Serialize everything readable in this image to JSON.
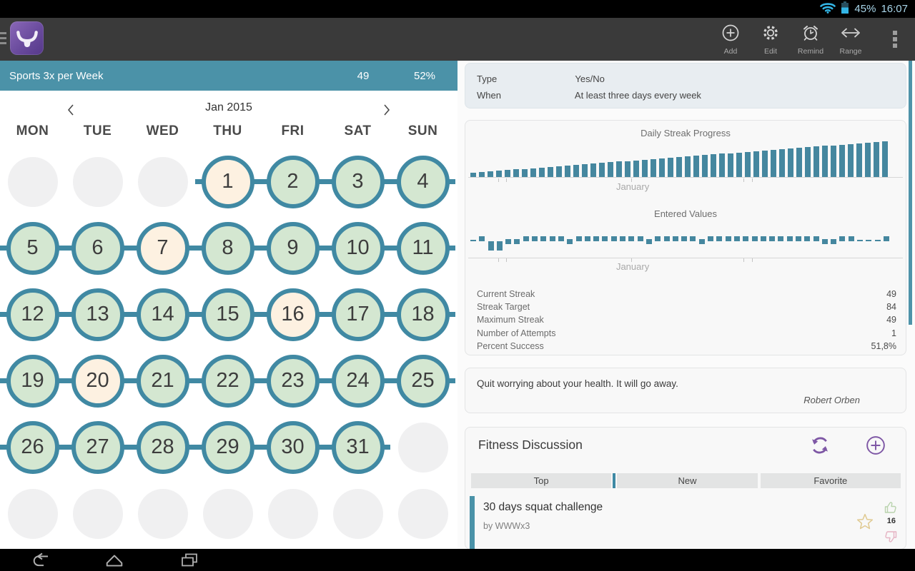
{
  "status_bar": {
    "battery_percent": "45%",
    "time": "16:07",
    "icons": [
      "wifi-icon",
      "battery-icon"
    ],
    "accent_color": "#33b5e5"
  },
  "toolbar": {
    "app_icon": "bull-logo",
    "menu_icon": "hamburger-icon",
    "actions": [
      {
        "label": "Add",
        "icon": "plus-circle-icon"
      },
      {
        "label": "Edit",
        "icon": "gear-icon"
      },
      {
        "label": "Remind",
        "icon": "alarm-clock-icon"
      },
      {
        "label": "Range",
        "icon": "left-right-arrow-icon"
      }
    ],
    "overflow_icon": "overflow-menu-icon"
  },
  "habit": {
    "title": "Sports 3x per Week",
    "streak": "49",
    "percent": "52%",
    "header_color": "#4b92a8"
  },
  "calendar": {
    "month_label": "Jan 2015",
    "day_names": [
      "MON",
      "TUE",
      "WED",
      "THU",
      "FRI",
      "SAT",
      "SUN"
    ],
    "legend": {
      "green": "completed day",
      "cream": "skipped/free day",
      "empty": "outside month"
    },
    "weeks": [
      [
        {
          "s": "empty"
        },
        {
          "s": "empty"
        },
        {
          "s": "empty"
        },
        {
          "n": "1",
          "s": "cream",
          "l": 1,
          "r": 1
        },
        {
          "n": "2",
          "s": "green",
          "l": 1,
          "r": 1
        },
        {
          "n": "3",
          "s": "green",
          "l": 1,
          "r": 1
        },
        {
          "n": "4",
          "s": "green",
          "l": 1,
          "r": 1
        }
      ],
      [
        {
          "n": "5",
          "s": "green",
          "l": 1,
          "r": 1
        },
        {
          "n": "6",
          "s": "green",
          "l": 1,
          "r": 1
        },
        {
          "n": "7",
          "s": "cream",
          "l": 1,
          "r": 1
        },
        {
          "n": "8",
          "s": "green",
          "l": 1,
          "r": 1
        },
        {
          "n": "9",
          "s": "green",
          "l": 1,
          "r": 1
        },
        {
          "n": "10",
          "s": "green",
          "l": 1,
          "r": 1
        },
        {
          "n": "11",
          "s": "green",
          "l": 1,
          "r": 1
        }
      ],
      [
        {
          "n": "12",
          "s": "green",
          "l": 1,
          "r": 1
        },
        {
          "n": "13",
          "s": "green",
          "l": 1,
          "r": 1
        },
        {
          "n": "14",
          "s": "green",
          "l": 1,
          "r": 1
        },
        {
          "n": "15",
          "s": "green",
          "l": 1,
          "r": 1
        },
        {
          "n": "16",
          "s": "cream",
          "l": 1,
          "r": 1
        },
        {
          "n": "17",
          "s": "green",
          "l": 1,
          "r": 1
        },
        {
          "n": "18",
          "s": "green",
          "l": 1,
          "r": 1
        }
      ],
      [
        {
          "n": "19",
          "s": "green",
          "l": 1,
          "r": 1
        },
        {
          "n": "20",
          "s": "cream",
          "l": 1,
          "r": 1
        },
        {
          "n": "21",
          "s": "green",
          "l": 1,
          "r": 1
        },
        {
          "n": "22",
          "s": "green",
          "l": 1,
          "r": 1
        },
        {
          "n": "23",
          "s": "green",
          "l": 1,
          "r": 1
        },
        {
          "n": "24",
          "s": "green",
          "l": 1,
          "r": 1
        },
        {
          "n": "25",
          "s": "green",
          "l": 1,
          "r": 1
        }
      ],
      [
        {
          "n": "26",
          "s": "green",
          "l": 1,
          "r": 1
        },
        {
          "n": "27",
          "s": "green",
          "l": 1,
          "r": 1
        },
        {
          "n": "28",
          "s": "green",
          "l": 1,
          "r": 1
        },
        {
          "n": "29",
          "s": "green",
          "l": 1,
          "r": 1
        },
        {
          "n": "30",
          "s": "green",
          "l": 1,
          "r": 1
        },
        {
          "n": "31",
          "s": "green",
          "l": 1,
          "r": 1
        },
        {
          "s": "empty"
        }
      ],
      [
        {
          "s": "empty"
        },
        {
          "s": "empty"
        },
        {
          "s": "empty"
        },
        {
          "s": "empty"
        },
        {
          "s": "empty"
        },
        {
          "s": "empty"
        },
        {
          "s": "empty"
        }
      ]
    ]
  },
  "details": {
    "rows": [
      {
        "label": "Type",
        "value": "Yes/No"
      },
      {
        "label": "When",
        "value": "At least three days every week"
      }
    ]
  },
  "chart_data": [
    {
      "type": "bar",
      "title": "Daily Streak Progress",
      "xlabel": "January",
      "ylim": [
        0,
        49
      ],
      "values": [
        1,
        2,
        3,
        4,
        5,
        6,
        7,
        8,
        9,
        10,
        11,
        12,
        13,
        14,
        15,
        16,
        17,
        18,
        19,
        20,
        21,
        22,
        23,
        24,
        25,
        26,
        27,
        28,
        29,
        30,
        31,
        32,
        33,
        34,
        35,
        36,
        37,
        38,
        39,
        40,
        41,
        42,
        43,
        44,
        45,
        46,
        47,
        48,
        49
      ],
      "color": "#45879f",
      "grid": false
    },
    {
      "type": "bar",
      "title": "Entered Values",
      "xlabel": "January",
      "token_meaning": {
        "up": "yes",
        "mid": "partial/low",
        "down": "no",
        "dash": "no entry"
      },
      "tokens": [
        "dash",
        "up",
        "down",
        "down",
        "mid",
        "mid",
        "up",
        "up",
        "up",
        "up",
        "up",
        "mid",
        "up",
        "up",
        "up",
        "up",
        "up",
        "up",
        "up",
        "up",
        "mid",
        "up",
        "up",
        "up",
        "up",
        "up",
        "mid",
        "up",
        "up",
        "up",
        "up",
        "up",
        "up",
        "up",
        "up",
        "up",
        "up",
        "up",
        "up",
        "up",
        "mid",
        "mid",
        "up",
        "up",
        "dash",
        "dash",
        "dash",
        "up"
      ],
      "color": "#45879f",
      "grid": false
    }
  ],
  "stats": {
    "rows": [
      {
        "label": "Current Streak",
        "value": "49"
      },
      {
        "label": "Streak Target",
        "value": "84"
      },
      {
        "label": "Maximum Streak",
        "value": "49"
      },
      {
        "label": "Number of Attempts",
        "value": "1"
      },
      {
        "label": "Percent Success",
        "value": "51,8%"
      }
    ]
  },
  "quote": {
    "text": "Quit worrying about your health. It will go away.",
    "author": "Robert Orben"
  },
  "discussion": {
    "title": "Fitness Discussion",
    "icons": [
      "refresh-icon",
      "plus-circle-icon"
    ],
    "tabs": [
      {
        "label": "Top"
      },
      {
        "label": "New",
        "active": true
      },
      {
        "label": "Favorite"
      }
    ],
    "items": [
      {
        "title": "30 days squat challenge",
        "author": "by WWWx3",
        "likes": "16",
        "icons": [
          "star-icon",
          "thumbs-up-icon",
          "thumbs-down-icon"
        ]
      }
    ]
  },
  "nav_bar": {
    "icons": [
      "back-icon",
      "home-icon",
      "recents-icon"
    ]
  }
}
